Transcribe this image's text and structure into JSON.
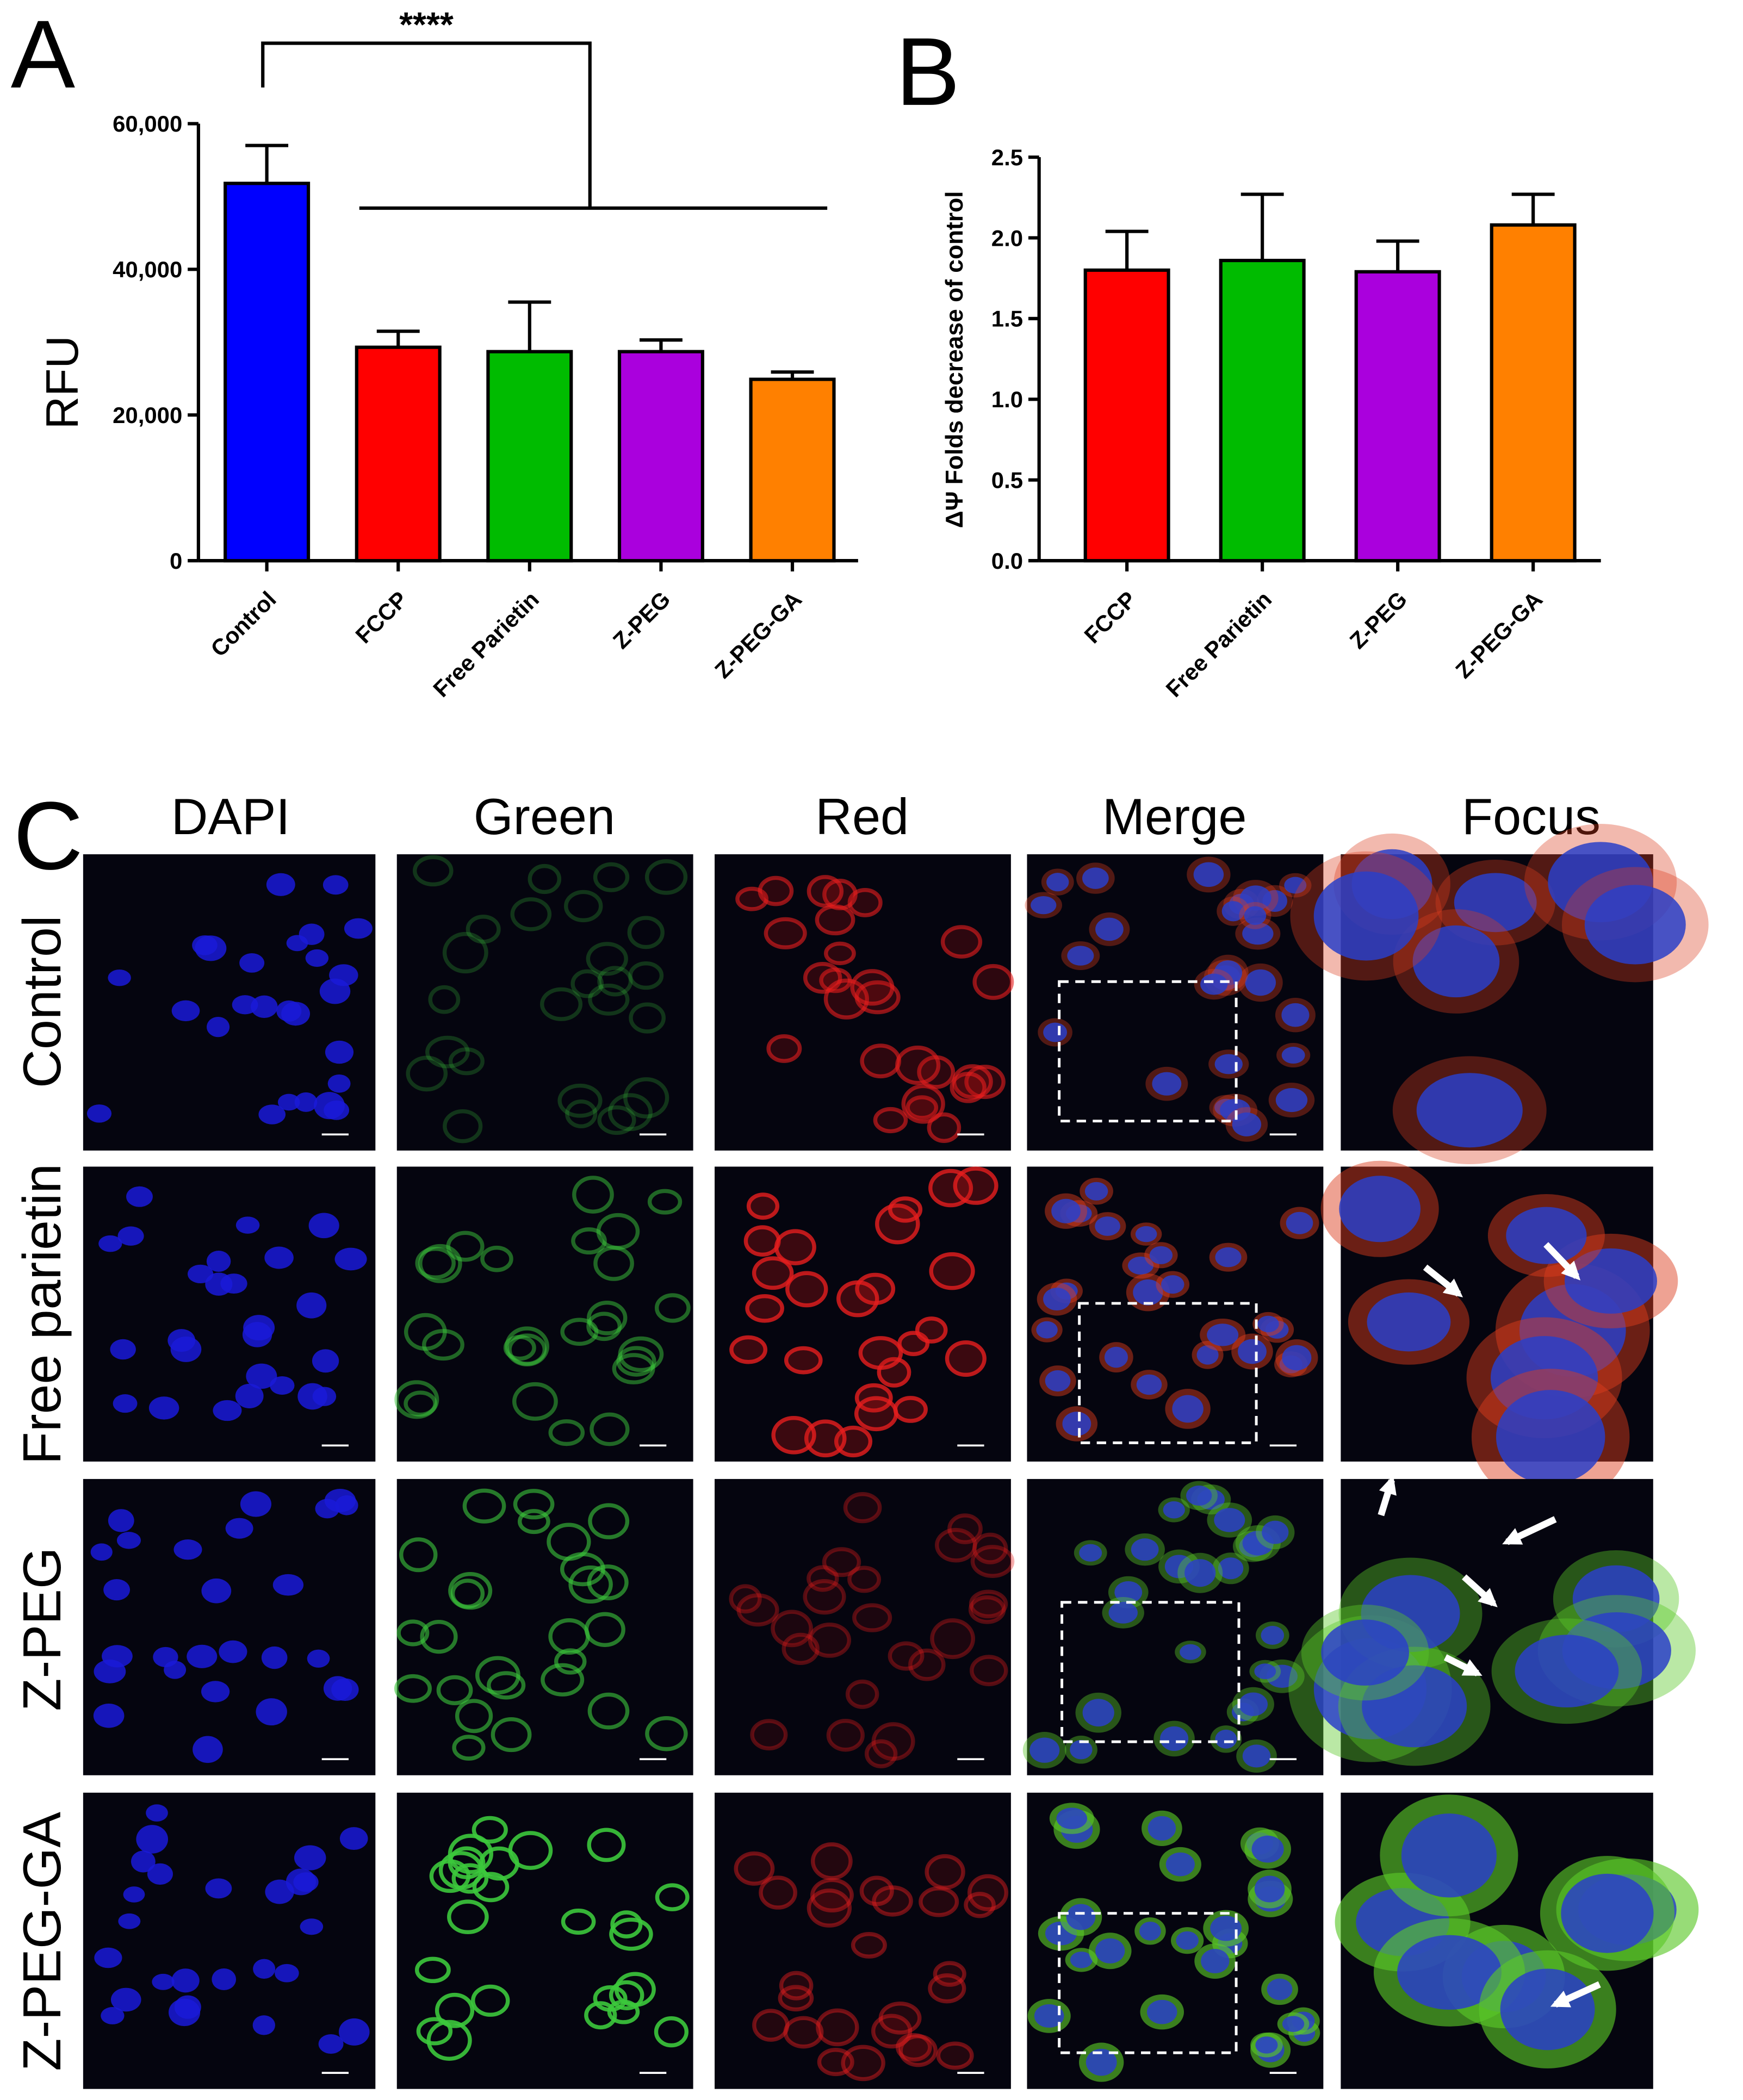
{
  "chart_data": [
    {
      "type": "bar",
      "panel_label": "A",
      "annotation": "****",
      "y_label": "RFU",
      "categories": [
        "Control",
        "FCCP",
        "Free Parietin",
        "Z-PEG",
        "Z-PEG-GA"
      ],
      "values": [
        51800,
        29300,
        28700,
        28700,
        24900
      ],
      "errors": [
        5200,
        2200,
        6800,
        1600,
        1000
      ],
      "colors": [
        "#0000ff",
        "#ff0000",
        "#00bb00",
        "#aa00dd",
        "#ff8000"
      ],
      "ylim": [
        0,
        60000
      ],
      "yticks": [
        0,
        {
          "value": 20000,
          "label": "20,000"
        },
        {
          "value": 40000,
          "label": "40,000"
        },
        {
          "value": 60000,
          "label": "60,000"
        }
      ]
    },
    {
      "type": "bar",
      "panel_label": "B",
      "y_label": "ΔΨ Folds decrease of control",
      "categories": [
        "FCCP",
        "Free Parietin",
        "Z-PEG",
        "Z-PEG-GA"
      ],
      "values": [
        1.8,
        1.86,
        1.79,
        2.08
      ],
      "errors": [
        0.24,
        0.41,
        0.19,
        0.19
      ],
      "colors": [
        "#ff0000",
        "#00bb00",
        "#aa00dd",
        "#ff8000"
      ],
      "ylim": [
        0,
        2.5
      ],
      "yticks": [
        {
          "value": 0,
          "label": "0.0"
        },
        0.5,
        {
          "value": 1,
          "label": "1.0"
        },
        1.5,
        {
          "value": 2,
          "label": "2.0"
        },
        2.5
      ]
    }
  ],
  "microscopy": {
    "panel_label": "C",
    "columns": [
      "DAPI",
      "Green",
      "Red",
      "Merge",
      "Focus"
    ],
    "rows": [
      "Control",
      "Free parietin",
      "Z-PEG",
      "Z-PEG-GA"
    ]
  }
}
